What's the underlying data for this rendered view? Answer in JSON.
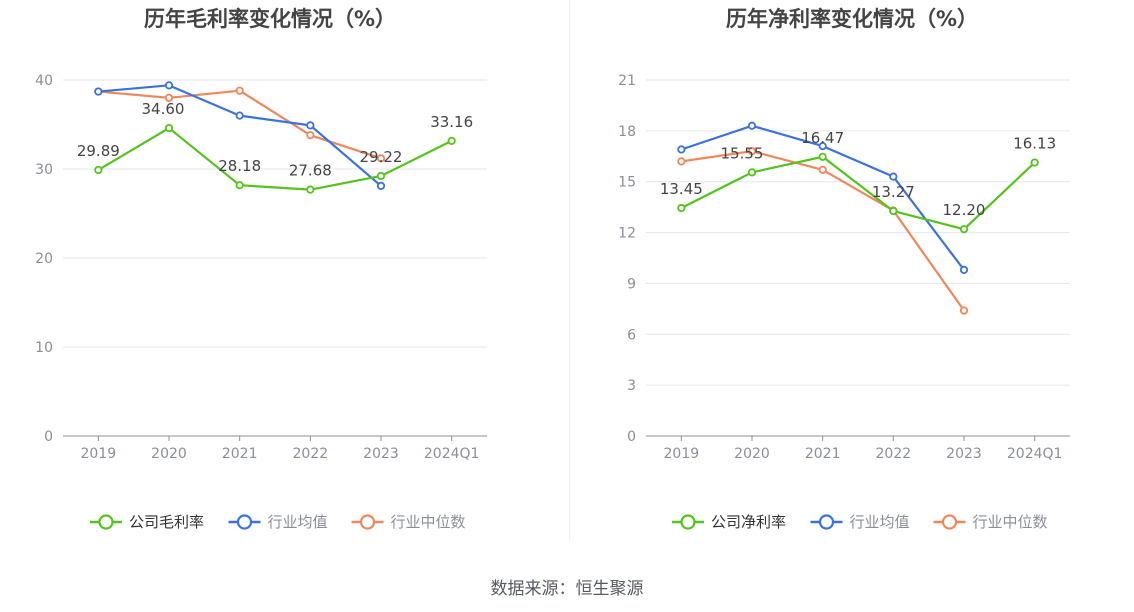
{
  "colors": {
    "company": "#52c41a",
    "industry_avg": "#3a72e0",
    "industry_median": "#f0875a",
    "grid": "#e3e6ee",
    "axis": "#8a8f99",
    "tick": "#8a8f99",
    "title": "#444444",
    "label": "#444444"
  },
  "source": "数据来源：恒生聚源",
  "chart_data": [
    {
      "type": "line",
      "title": "历年毛利率变化情况（%）",
      "categories": [
        "2019",
        "2020",
        "2021",
        "2022",
        "2023",
        "2024Q1"
      ],
      "ylim": [
        0,
        40
      ],
      "yticks": [
        0,
        10,
        20,
        30,
        40
      ],
      "grid": true,
      "legend": "bottom",
      "series": [
        {
          "name": "公司毛利率",
          "key": "company",
          "values": [
            29.89,
            34.6,
            28.18,
            27.68,
            29.22,
            33.16
          ],
          "labels": [
            "29.89",
            "34.60",
            "28.18",
            "27.68",
            "29.22",
            "33.16"
          ]
        },
        {
          "name": "行业均值",
          "key": "industry_avg",
          "values": [
            38.7,
            39.4,
            36.0,
            34.9,
            28.1,
            null
          ]
        },
        {
          "name": "行业中位数",
          "key": "industry_median",
          "values": [
            38.7,
            38.0,
            38.8,
            33.8,
            31.2,
            null
          ]
        }
      ]
    },
    {
      "type": "line",
      "title": "历年净利率变化情况（%）",
      "categories": [
        "2019",
        "2020",
        "2021",
        "2022",
        "2023",
        "2024Q1"
      ],
      "ylim": [
        0,
        21
      ],
      "yticks": [
        0,
        3,
        6,
        9,
        12,
        15,
        18,
        21
      ],
      "grid": true,
      "legend": "bottom",
      "series": [
        {
          "name": "公司净利率",
          "key": "company",
          "values": [
            13.45,
            15.55,
            16.47,
            13.27,
            12.2,
            16.13
          ],
          "labels": [
            "13.45",
            "15.55",
            "16.47",
            "13.27",
            "12.20",
            "16.13"
          ]
        },
        {
          "name": "行业均值",
          "key": "industry_avg",
          "values": [
            16.9,
            18.3,
            17.1,
            15.3,
            9.8,
            null
          ]
        },
        {
          "name": "行业中位数",
          "key": "industry_median",
          "values": [
            16.2,
            16.8,
            15.7,
            13.3,
            7.4,
            null
          ]
        }
      ]
    }
  ]
}
